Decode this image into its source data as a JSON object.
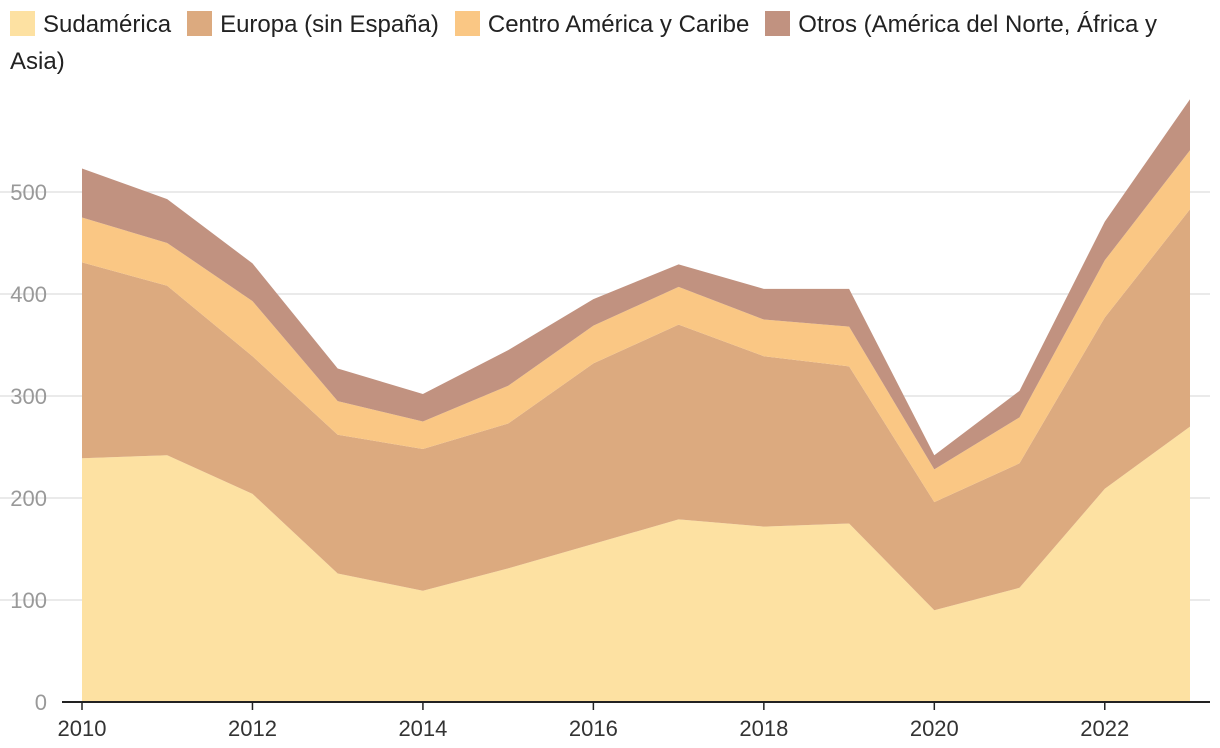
{
  "chart_data": {
    "type": "area",
    "stacked": true,
    "title": "",
    "xlabel": "",
    "ylabel": "",
    "x": [
      2010,
      2011,
      2012,
      2013,
      2014,
      2015,
      2016,
      2017,
      2018,
      2019,
      2020,
      2021,
      2022,
      2023
    ],
    "xlim": [
      2010,
      2023
    ],
    "ylim": [
      0,
      590
    ],
    "y_ticks": [
      0,
      100,
      200,
      300,
      400,
      500
    ],
    "x_ticks": [
      2010,
      2012,
      2014,
      2016,
      2018,
      2020,
      2022
    ],
    "grid": true,
    "legend_position": "top",
    "series": [
      {
        "name": "Sudamérica",
        "color": "#fde1a2",
        "values": [
          239,
          242,
          204,
          126,
          109,
          131,
          155,
          179,
          172,
          175,
          90,
          112,
          209,
          270
        ]
      },
      {
        "name": "Europa (sin España)",
        "color": "#dcaa7f",
        "values": [
          192,
          166,
          135,
          136,
          139,
          142,
          177,
          191,
          167,
          154,
          106,
          122,
          168,
          213
        ]
      },
      {
        "name": "Centro América y Caribe",
        "color": "#fac784",
        "values": [
          44,
          42,
          54,
          33,
          27,
          37,
          37,
          37,
          36,
          39,
          32,
          45,
          56,
          58
        ]
      },
      {
        "name": "Otros (América del Norte, África y Asia)",
        "color": "#c19280",
        "values": [
          48,
          43,
          37,
          32,
          27,
          35,
          26,
          22,
          30,
          37,
          14,
          26,
          38,
          50
        ]
      }
    ]
  }
}
